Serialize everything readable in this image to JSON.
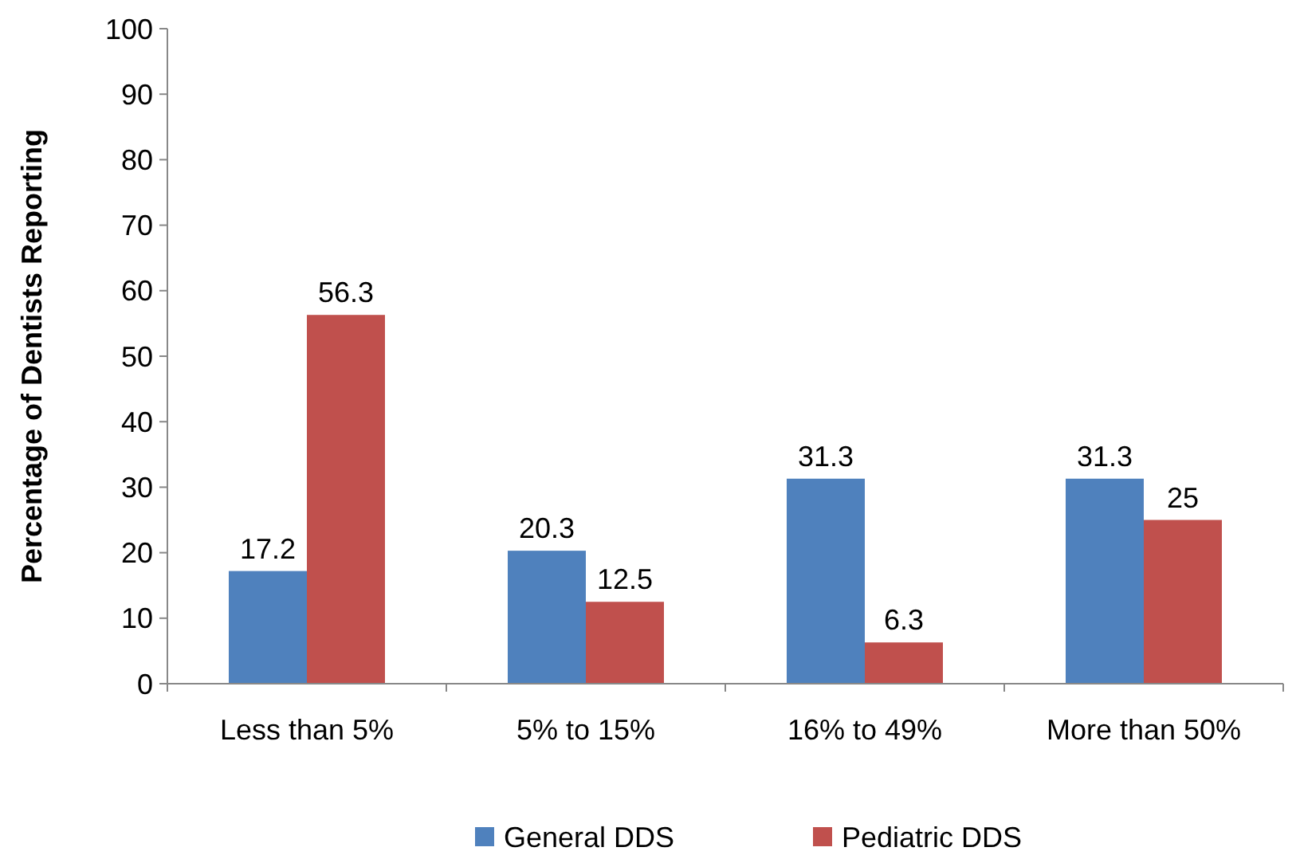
{
  "chart_data": {
    "type": "bar",
    "ylabel": "Percentage of Dentists Reporting",
    "categories": [
      "Less than 5%",
      "5% to 15%",
      "16% to 49%",
      "More than 50%"
    ],
    "series": [
      {
        "name": "General DDS",
        "color": "#4f81bd",
        "values": [
          17.2,
          20.3,
          31.3,
          31.3
        ]
      },
      {
        "name": "Pediatric DDS",
        "color": "#c0504d",
        "values": [
          56.3,
          12.5,
          6.3,
          25
        ]
      }
    ],
    "ylim": [
      0,
      100
    ],
    "yticks": [
      0,
      10,
      20,
      30,
      40,
      50,
      60,
      70,
      80,
      90,
      100
    ],
    "grid": false,
    "legend": "bottom",
    "data_labels": true
  }
}
